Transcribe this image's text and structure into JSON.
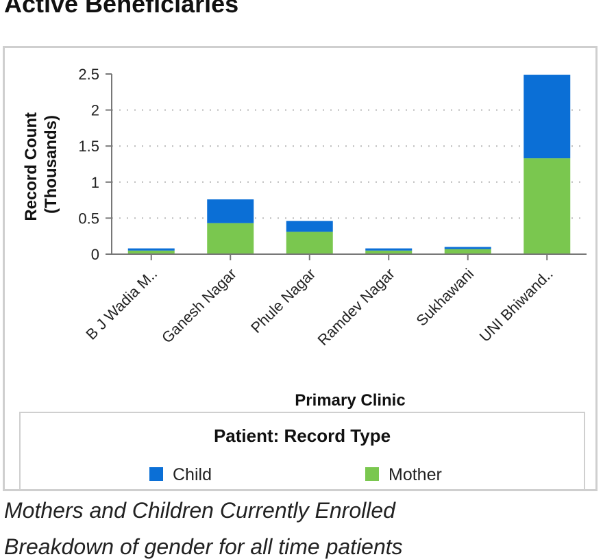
{
  "page": {
    "title": "Active Beneficiaries",
    "caption": "Mothers and Children Currently Enrolled",
    "subcaption": "Breakdown of gender for all time patients"
  },
  "chart_data": {
    "type": "bar",
    "stacked": true,
    "title": "",
    "xlabel": "Primary Clinic",
    "ylabel": "Record Count (Thousands)",
    "ylabel_lines": [
      "Record Count",
      "(Thousands)"
    ],
    "ylim": [
      0,
      2.5
    ],
    "yticks": [
      0,
      0.5,
      1,
      1.5,
      2,
      2.5
    ],
    "ytick_labels": [
      "0",
      "0.5",
      "1",
      "1.5",
      "2",
      "2.5"
    ],
    "grid": "horizontal dotted",
    "categories": [
      "B J Wadia M..",
      "Ganesh Nagar",
      "Phule Nagar",
      "Ramdev Nagar",
      "Sukhawani",
      "UNI Bhiwand.."
    ],
    "series": [
      {
        "name": "Mother",
        "color": "#7ac74f",
        "values": [
          0.05,
          0.43,
          0.31,
          0.05,
          0.07,
          1.33
        ]
      },
      {
        "name": "Child",
        "color": "#0b6fd6",
        "values": [
          0.03,
          0.33,
          0.15,
          0.03,
          0.03,
          1.16
        ]
      }
    ],
    "legend": {
      "title": "Patient: Record Type",
      "placement": "bottom",
      "items": [
        {
          "label": "Child",
          "color": "#0b6fd6"
        },
        {
          "label": "Mother",
          "color": "#7ac74f"
        }
      ]
    }
  }
}
